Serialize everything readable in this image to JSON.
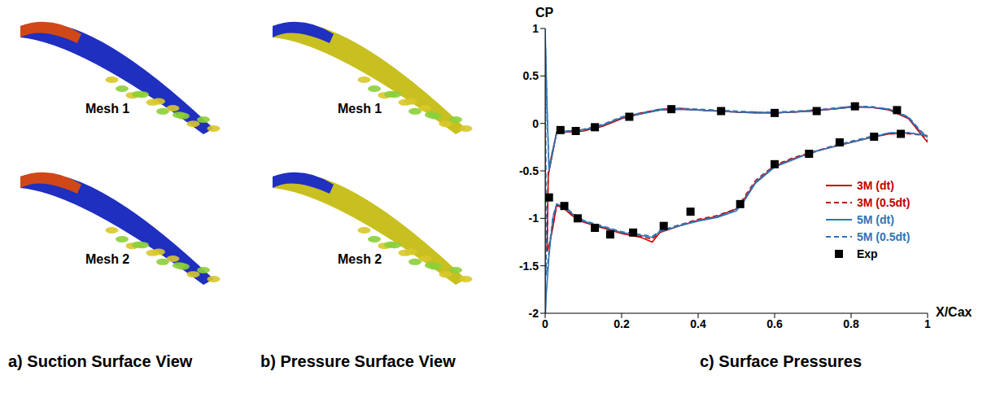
{
  "panels": [
    {
      "caption": "a) Suction Surface View",
      "meshes": [
        "Mesh 1",
        "Mesh 2"
      ]
    },
    {
      "caption": "b) Pressure Surface View",
      "meshes": [
        "Mesh 1",
        "Mesh 2"
      ]
    }
  ],
  "chart_data": {
    "type": "line",
    "title": "c) Surface Pressures",
    "y_label": "CP",
    "x_label": "X/Cax",
    "xlim": [
      0,
      1
    ],
    "xticks": [
      0,
      0.2,
      0.4,
      0.6,
      0.8,
      1
    ],
    "ylim": [
      -2,
      1
    ],
    "yticks": [
      1,
      0.5,
      0,
      -0.5,
      -1,
      -1.5,
      -2
    ],
    "grid": false,
    "legend": "lower right",
    "series": [
      {
        "name": "3M (dt)",
        "color": "#c00000",
        "line_style": "solid",
        "x": [
          1,
          0.95,
          0.9,
          0.85,
          0.8,
          0.75,
          0.7,
          0.65,
          0.6,
          0.55,
          0.52,
          0.5,
          0.45,
          0.4,
          0.35,
          0.3,
          0.28,
          0.25,
          0.2,
          0.15,
          0.1,
          0.07,
          0.05,
          0.03,
          0.02,
          0.01,
          0.005,
          0.008,
          0.03,
          0.1,
          0.15,
          0.2,
          0.25,
          0.3,
          0.35,
          0.4,
          0.45,
          0.5,
          0.55,
          0.6,
          0.65,
          0.7,
          0.75,
          0.8,
          0.85,
          0.9,
          0.95,
          0.98,
          1
        ],
        "values": [
          -0.13,
          -0.1,
          -0.11,
          -0.15,
          -0.2,
          -0.25,
          -0.3,
          -0.37,
          -0.45,
          -0.62,
          -0.8,
          -0.9,
          -0.98,
          -1.02,
          -1.08,
          -1.15,
          -1.25,
          -1.2,
          -1.16,
          -1.1,
          -1.04,
          -0.97,
          -0.9,
          -0.86,
          -1.1,
          -1.3,
          -1.35,
          -0.55,
          -0.1,
          -0.08,
          -0.03,
          0.05,
          0.1,
          0.14,
          0.15,
          0.14,
          0.13,
          0.12,
          0.11,
          0.11,
          0.12,
          0.13,
          0.15,
          0.17,
          0.17,
          0.14,
          0.05,
          -0.1,
          -0.2
        ]
      },
      {
        "name": "3M (0.5dt)",
        "color": "#c00000",
        "line_style": "dashed",
        "x": [
          1,
          0.95,
          0.9,
          0.85,
          0.8,
          0.75,
          0.7,
          0.65,
          0.6,
          0.55,
          0.52,
          0.5,
          0.45,
          0.4,
          0.35,
          0.3,
          0.28,
          0.25,
          0.2,
          0.15,
          0.1,
          0.07,
          0.05,
          0.03,
          0.02,
          0.01,
          0.005,
          0.008,
          0.03,
          0.1,
          0.15,
          0.2,
          0.25,
          0.3,
          0.35,
          0.4,
          0.45,
          0.5,
          0.55,
          0.6,
          0.65,
          0.7,
          0.75,
          0.8,
          0.85,
          0.9,
          0.95,
          0.98,
          1
        ],
        "values": [
          -0.13,
          -0.11,
          -0.11,
          -0.14,
          -0.19,
          -0.24,
          -0.3,
          -0.36,
          -0.44,
          -0.6,
          -0.78,
          -0.9,
          -0.97,
          -1.01,
          -1.07,
          -1.14,
          -1.22,
          -1.19,
          -1.15,
          -1.1,
          -1.03,
          -0.96,
          -0.89,
          -0.86,
          -1.08,
          -1.28,
          -1.33,
          -0.5,
          -0.09,
          -0.07,
          -0.02,
          0.06,
          0.11,
          0.15,
          0.16,
          0.14,
          0.13,
          0.12,
          0.12,
          0.11,
          0.12,
          0.14,
          0.15,
          0.18,
          0.17,
          0.15,
          0.06,
          -0.1,
          -0.18
        ]
      },
      {
        "name": "5M (dt)",
        "color": "#2e75b6",
        "line_style": "solid",
        "x": [
          1,
          0.95,
          0.9,
          0.85,
          0.8,
          0.75,
          0.7,
          0.65,
          0.6,
          0.55,
          0.52,
          0.5,
          0.45,
          0.4,
          0.35,
          0.3,
          0.28,
          0.25,
          0.2,
          0.15,
          0.1,
          0.07,
          0.05,
          0.03,
          0.02,
          0.01,
          0.003,
          0.001,
          0,
          0.005,
          0.01,
          0.03,
          0.1,
          0.15,
          0.2,
          0.25,
          0.3,
          0.35,
          0.4,
          0.45,
          0.5,
          0.55,
          0.6,
          0.65,
          0.7,
          0.75,
          0.8,
          0.85,
          0.9,
          0.95,
          0.98,
          1
        ],
        "values": [
          -0.13,
          -0.1,
          -0.1,
          -0.15,
          -0.2,
          -0.25,
          -0.3,
          -0.38,
          -0.46,
          -0.63,
          -0.82,
          -0.92,
          -0.99,
          -1.03,
          -1.08,
          -1.14,
          -1.2,
          -1.18,
          -1.15,
          -1.09,
          -1.03,
          -0.95,
          -0.88,
          -0.85,
          -1.0,
          -1.4,
          -1.8,
          -2,
          1,
          0.2,
          -0.5,
          -0.1,
          -0.07,
          -0.02,
          0.06,
          0.1,
          0.14,
          0.15,
          0.14,
          0.13,
          0.12,
          0.11,
          0.11,
          0.12,
          0.13,
          0.15,
          0.17,
          0.17,
          0.15,
          0.06,
          -0.08,
          -0.15
        ]
      },
      {
        "name": "5M (0.5dt)",
        "color": "#2e75b6",
        "line_style": "dashed",
        "x": [
          1,
          0.95,
          0.9,
          0.85,
          0.8,
          0.75,
          0.7,
          0.65,
          0.6,
          0.55,
          0.52,
          0.5,
          0.45,
          0.4,
          0.35,
          0.3,
          0.28,
          0.25,
          0.2,
          0.15,
          0.1,
          0.07,
          0.05,
          0.03,
          0.02,
          0.01,
          0.003,
          0.001,
          0.005,
          0.01,
          0.03,
          0.1,
          0.15,
          0.2,
          0.25,
          0.3,
          0.35,
          0.4,
          0.45,
          0.5,
          0.55,
          0.6,
          0.65,
          0.7,
          0.75,
          0.8,
          0.85,
          0.9,
          0.95,
          0.98,
          1
        ],
        "values": [
          -0.13,
          -0.1,
          -0.1,
          -0.14,
          -0.19,
          -0.24,
          -0.31,
          -0.37,
          -0.45,
          -0.61,
          -0.8,
          -0.91,
          -0.98,
          -1.02,
          -1.07,
          -1.13,
          -1.19,
          -1.17,
          -1.14,
          -1.08,
          -1.02,
          -0.94,
          -0.87,
          -0.85,
          -0.98,
          -1.35,
          -1.6,
          0.8,
          0.1,
          -0.45,
          -0.09,
          -0.06,
          -0.01,
          0.07,
          0.11,
          0.15,
          0.16,
          0.15,
          0.14,
          0.13,
          0.12,
          0.12,
          0.13,
          0.14,
          0.16,
          0.18,
          0.18,
          0.15,
          0.07,
          -0.07,
          -0.14
        ]
      },
      {
        "name": "Exp",
        "type": "scatter",
        "marker": "square",
        "color": "#000000",
        "x": [
          0.01,
          0.04,
          0.05,
          0.08,
          0.085,
          0.13,
          0.13,
          0.17,
          0.22,
          0.23,
          0.31,
          0.33,
          0.38,
          0.46,
          0.51,
          0.6,
          0.6,
          0.69,
          0.71,
          0.77,
          0.81,
          0.86,
          0.92,
          0.93
        ],
        "values": [
          -0.78,
          -0.07,
          -0.87,
          -0.08,
          -1.0,
          -0.04,
          -1.1,
          -1.17,
          0.07,
          -1.15,
          -1.08,
          0.15,
          -0.93,
          0.13,
          -0.85,
          0.11,
          -0.43,
          -0.32,
          0.13,
          -0.2,
          0.18,
          -0.14,
          0.14,
          -0.11
        ]
      }
    ]
  }
}
